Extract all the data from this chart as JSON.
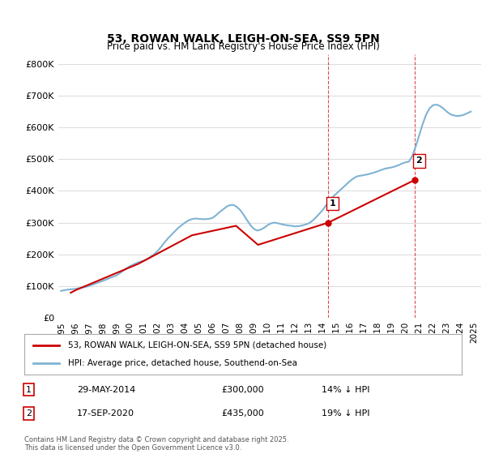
{
  "title": "53, ROWAN WALK, LEIGH-ON-SEA, SS9 5PN",
  "subtitle": "Price paid vs. HM Land Registry's House Price Index (HPI)",
  "ylabel": "",
  "ylim": [
    0,
    830000
  ],
  "yticks": [
    0,
    100000,
    200000,
    300000,
    400000,
    500000,
    600000,
    700000,
    800000
  ],
  "ytick_labels": [
    "£0",
    "£100K",
    "£200K",
    "£300K",
    "£400K",
    "£500K",
    "£600K",
    "£700K",
    "£800K"
  ],
  "hpi_color": "#7fb3d3",
  "price_color": "#cc0000",
  "grid_color": "#dddddd",
  "background_color": "#ffffff",
  "sale1_date": "29-MAY-2014",
  "sale1_price": 300000,
  "sale1_pct": "14%",
  "sale2_date": "17-SEP-2020",
  "sale2_price": 435000,
  "sale2_pct": "19%",
  "legend1": "53, ROWAN WALK, LEIGH-ON-SEA, SS9 5PN (detached house)",
  "legend2": "HPI: Average price, detached house, Southend-on-Sea",
  "footnote": "Contains HM Land Registry data © Crown copyright and database right 2025.\nThis data is licensed under the Open Government Licence v3.0.",
  "hpi_x": [
    1995.0,
    1995.25,
    1995.5,
    1995.75,
    1996.0,
    1996.25,
    1996.5,
    1996.75,
    1997.0,
    1997.25,
    1997.5,
    1997.75,
    1998.0,
    1998.25,
    1998.5,
    1998.75,
    1999.0,
    1999.25,
    1999.5,
    1999.75,
    2000.0,
    2000.25,
    2000.5,
    2000.75,
    2001.0,
    2001.25,
    2001.5,
    2001.75,
    2002.0,
    2002.25,
    2002.5,
    2002.75,
    2003.0,
    2003.25,
    2003.5,
    2003.75,
    2004.0,
    2004.25,
    2004.5,
    2004.75,
    2005.0,
    2005.25,
    2005.5,
    2005.75,
    2006.0,
    2006.25,
    2006.5,
    2006.75,
    2007.0,
    2007.25,
    2007.5,
    2007.75,
    2008.0,
    2008.25,
    2008.5,
    2008.75,
    2009.0,
    2009.25,
    2009.5,
    2009.75,
    2010.0,
    2010.25,
    2010.5,
    2010.75,
    2011.0,
    2011.25,
    2011.5,
    2011.75,
    2012.0,
    2012.25,
    2012.5,
    2012.75,
    2013.0,
    2013.25,
    2013.5,
    2013.75,
    2014.0,
    2014.25,
    2014.5,
    2014.75,
    2015.0,
    2015.25,
    2015.5,
    2015.75,
    2016.0,
    2016.25,
    2016.5,
    2016.75,
    2017.0,
    2017.25,
    2017.5,
    2017.75,
    2018.0,
    2018.25,
    2018.5,
    2018.75,
    2019.0,
    2019.25,
    2019.5,
    2019.75,
    2020.0,
    2020.25,
    2020.5,
    2020.75,
    2021.0,
    2021.25,
    2021.5,
    2021.75,
    2022.0,
    2022.25,
    2022.5,
    2022.75,
    2023.0,
    2023.25,
    2023.5,
    2023.75,
    2024.0,
    2024.25,
    2024.5,
    2024.75
  ],
  "hpi_y": [
    85000,
    87000,
    89000,
    90000,
    91000,
    93000,
    95000,
    97000,
    100000,
    104000,
    108000,
    112000,
    116000,
    120000,
    125000,
    129000,
    133000,
    140000,
    148000,
    156000,
    163000,
    168000,
    173000,
    177000,
    180000,
    185000,
    192000,
    200000,
    210000,
    223000,
    237000,
    250000,
    261000,
    272000,
    283000,
    292000,
    300000,
    307000,
    311000,
    313000,
    312000,
    311000,
    311000,
    312000,
    315000,
    323000,
    333000,
    341000,
    350000,
    355000,
    356000,
    350000,
    340000,
    325000,
    308000,
    292000,
    280000,
    275000,
    278000,
    284000,
    292000,
    298000,
    300000,
    298000,
    295000,
    293000,
    291000,
    290000,
    288000,
    289000,
    291000,
    294000,
    298000,
    306000,
    316000,
    328000,
    340000,
    355000,
    370000,
    382000,
    392000,
    402000,
    412000,
    422000,
    432000,
    440000,
    446000,
    448000,
    450000,
    452000,
    455000,
    458000,
    462000,
    466000,
    470000,
    472000,
    474000,
    477000,
    481000,
    486000,
    490000,
    492000,
    510000,
    540000,
    575000,
    610000,
    640000,
    660000,
    670000,
    672000,
    668000,
    660000,
    650000,
    642000,
    638000,
    636000,
    637000,
    640000,
    645000,
    650000
  ],
  "price_x": [
    1995.7,
    1996.1,
    2000.6,
    2004.5,
    2007.7,
    2009.3,
    2014.4,
    2020.7
  ],
  "price_y": [
    79000,
    88000,
    170000,
    260000,
    290000,
    230000,
    300000,
    435000
  ],
  "sale1_x": 2014.4,
  "sale1_y": 300000,
  "sale2_x": 2020.7,
  "sale2_y": 435000,
  "vline1_x": 2014.4,
  "vline2_x": 2020.7,
  "xtick_years": [
    1995,
    1996,
    1997,
    1998,
    1999,
    2000,
    2001,
    2002,
    2003,
    2004,
    2005,
    2006,
    2007,
    2008,
    2009,
    2010,
    2011,
    2012,
    2013,
    2014,
    2015,
    2016,
    2017,
    2018,
    2019,
    2020,
    2021,
    2022,
    2023,
    2024,
    2025
  ]
}
